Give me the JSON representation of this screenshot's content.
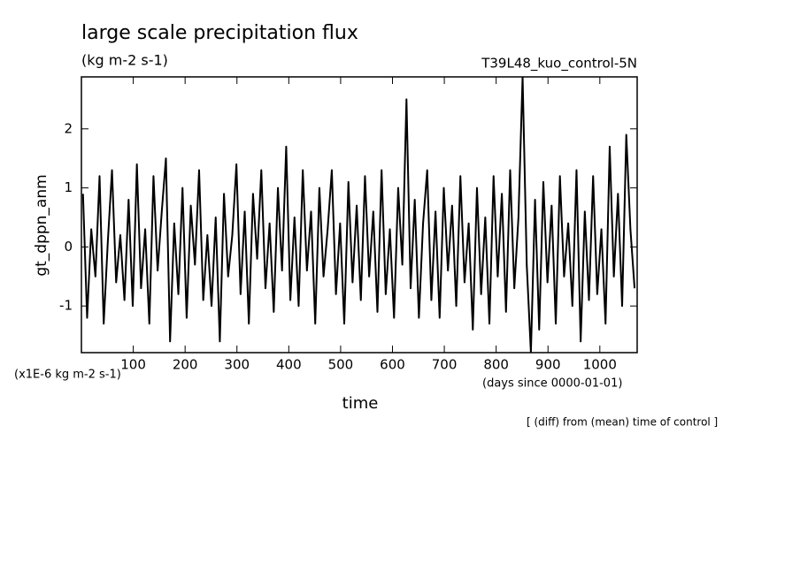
{
  "chart_data": {
    "type": "line",
    "title": "large scale precipitation flux",
    "subtitle": "(kg m-2 s-1)",
    "run_label": "T39L48_kuo_control-5N",
    "y_label": "gt_dppn_anm",
    "y_unit": "(x1E-6 kg m-2 s-1)",
    "x_label": "time",
    "x_unit": "(days since 0000-01-01)",
    "note": "[ (diff) from (mean) time of control ]",
    "xlim": [
      0,
      1072
    ],
    "ylim": [
      -1.79,
      2.88
    ],
    "xticks": [
      100,
      200,
      300,
      400,
      500,
      600,
      700,
      800,
      900,
      1000
    ],
    "yticks": [
      -1,
      0,
      1,
      2
    ],
    "color": "#000000",
    "x": [
      3,
      11,
      19,
      27,
      35,
      43,
      51,
      59,
      67,
      75,
      83,
      91,
      99,
      107,
      115,
      123,
      131,
      139,
      147,
      155,
      163,
      171,
      179,
      187,
      195,
      203,
      211,
      219,
      227,
      235,
      243,
      251,
      259,
      267,
      275,
      283,
      291,
      299,
      307,
      315,
      323,
      331,
      339,
      347,
      355,
      363,
      371,
      379,
      387,
      395,
      403,
      411,
      419,
      427,
      435,
      443,
      451,
      459,
      467,
      475,
      483,
      491,
      499,
      507,
      515,
      523,
      531,
      539,
      547,
      555,
      563,
      571,
      579,
      587,
      595,
      603,
      611,
      619,
      627,
      635,
      643,
      651,
      659,
      667,
      675,
      683,
      691,
      699,
      707,
      715,
      723,
      731,
      739,
      747,
      755,
      763,
      771,
      779,
      787,
      795,
      803,
      811,
      819,
      827,
      835,
      843,
      851,
      859,
      867,
      875,
      883,
      891,
      899,
      907,
      915,
      923,
      931,
      939,
      947,
      955,
      963,
      971,
      979,
      987,
      995,
      1003,
      1011,
      1019,
      1027,
      1035,
      1043,
      1051,
      1059,
      1067
    ],
    "values": [
      0.9,
      -1.2,
      0.3,
      -0.5,
      1.2,
      -1.3,
      0.1,
      1.3,
      -0.6,
      0.2,
      -0.9,
      0.8,
      -1.0,
      1.4,
      -0.7,
      0.3,
      -1.3,
      1.2,
      -0.4,
      0.6,
      1.5,
      -1.6,
      0.4,
      -0.8,
      1.0,
      -1.2,
      0.7,
      -0.3,
      1.3,
      -0.9,
      0.2,
      -1.0,
      0.5,
      -1.6,
      0.9,
      -0.5,
      0.2,
      1.4,
      -0.8,
      0.6,
      -1.3,
      0.9,
      -0.2,
      1.3,
      -0.7,
      0.4,
      -1.1,
      1.0,
      -0.4,
      1.7,
      -0.9,
      0.5,
      -1.0,
      1.3,
      -0.4,
      0.6,
      -1.3,
      1.0,
      -0.5,
      0.3,
      1.3,
      -0.8,
      0.4,
      -1.3,
      1.1,
      -0.6,
      0.7,
      -0.9,
      1.2,
      -0.5,
      0.6,
      -1.1,
      1.3,
      -0.8,
      0.3,
      -1.2,
      1.0,
      -0.3,
      2.5,
      -0.7,
      0.8,
      -1.2,
      0.4,
      1.3,
      -0.9,
      0.6,
      -1.2,
      1.0,
      -0.4,
      0.7,
      -1.0,
      1.2,
      -0.6,
      0.4,
      -1.4,
      1.0,
      -0.8,
      0.5,
      -1.3,
      1.2,
      -0.5,
      0.9,
      -1.1,
      1.3,
      -0.7,
      0.5,
      2.88,
      -0.3,
      -1.79,
      0.8,
      -1.4,
      1.1,
      -0.6,
      0.7,
      -1.3,
      1.2,
      -0.5,
      0.4,
      -1.0,
      1.3,
      -1.6,
      0.6,
      -0.9,
      1.2,
      -0.8,
      0.3,
      -1.3,
      1.7,
      -0.5,
      0.9,
      -1.0,
      1.9,
      0.3,
      -0.7
    ]
  }
}
